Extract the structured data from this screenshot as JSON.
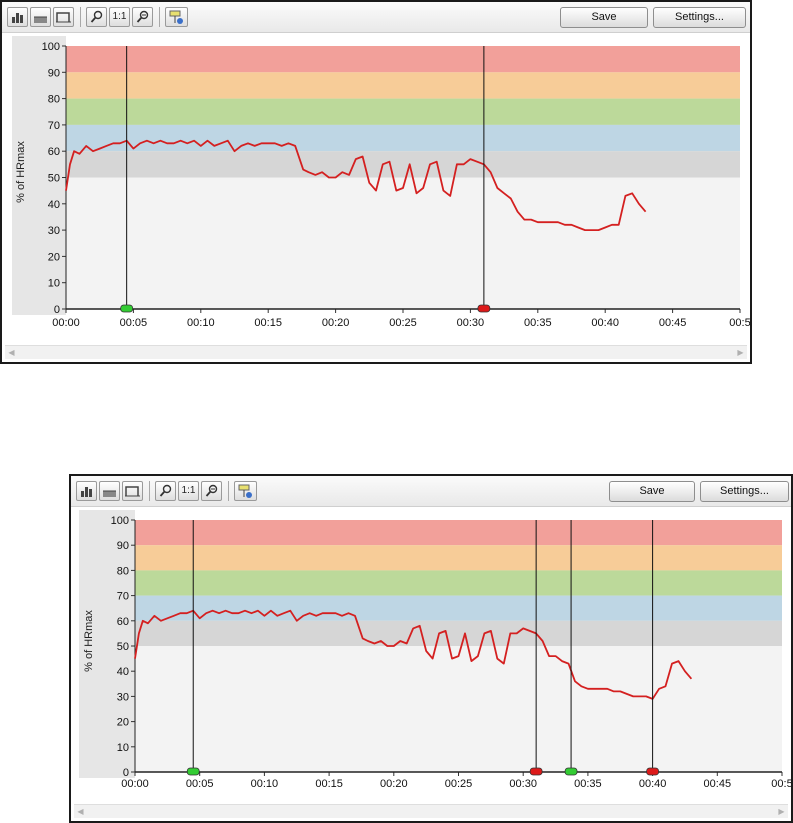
{
  "toolbar": {
    "icons": [
      "bar-chart-icon",
      "area-chart-icon",
      "step-chart-icon",
      "zoom-in-icon",
      "zoom-reset-icon",
      "zoom-out-icon",
      "marker-settings-icon"
    ],
    "zoom_reset_label": "1:1",
    "save_label": "Save",
    "settings_label": "Settings..."
  },
  "colors": {
    "line": "#d42020",
    "zone_90_100": "#f2a09a",
    "zone_80_90": "#f7cc98",
    "zone_70_80": "#bcd99a",
    "zone_60_70": "#bed6e4",
    "zone_50_60": "#d6d6d6",
    "plot_background": "#f3f3f3",
    "start_marker": "#33cc33",
    "stop_marker": "#dd1a1a"
  },
  "chart_data": [
    {
      "type": "line",
      "ylabel": "% of HRmax",
      "xlabel": "",
      "x_unit": "mm:ss",
      "xlim": [
        "00:00",
        "00:50"
      ],
      "ylim": [
        0,
        100
      ],
      "y_ticks": [
        "0",
        "10",
        "20",
        "30",
        "40",
        "50",
        "60",
        "70",
        "80",
        "90",
        "100"
      ],
      "x_ticks": [
        "00:00",
        "00:05",
        "00:10",
        "00:15",
        "00:20",
        "00:25",
        "00:30",
        "00:35",
        "00:40",
        "00:45",
        "00:5"
      ],
      "zones": [
        {
          "from": 90,
          "to": 100,
          "color": "#f2a09a"
        },
        {
          "from": 80,
          "to": 90,
          "color": "#f7cc98"
        },
        {
          "from": 70,
          "to": 80,
          "color": "#bcd99a"
        },
        {
          "from": 60,
          "to": 70,
          "color": "#bed6e4"
        },
        {
          "from": 50,
          "to": 60,
          "color": "#d6d6d6"
        }
      ],
      "markers": [
        {
          "time": "00:04.5",
          "type": "start",
          "color": "green"
        },
        {
          "time": "00:31",
          "type": "stop",
          "color": "red"
        }
      ],
      "series": [
        {
          "x": [
            "00:00.0",
            "00:00.3",
            "00:00.6",
            "00:01.0",
            "00:01.5",
            "00:02.0",
            "00:02.5",
            "00:03.0",
            "00:03.5",
            "00:04.0",
            "00:04.5",
            "00:05.0",
            "00:05.5",
            "00:06.0",
            "00:06.5",
            "00:07.0",
            "00:07.5",
            "00:08.0",
            "00:08.5",
            "00:09.0",
            "00:09.5",
            "00:10.0",
            "00:10.5",
            "00:11.0",
            "00:11.5",
            "00:12.0",
            "00:12.5",
            "00:13.0",
            "00:13.5",
            "00:14.0",
            "00:14.5",
            "00:15.0",
            "00:15.5",
            "00:16.0",
            "00:16.5",
            "00:17.0",
            "00:17.6",
            "00:18.0",
            "00:18.5",
            "00:19.0",
            "00:19.5",
            "00:20.0",
            "00:20.5",
            "00:21.0",
            "00:21.5",
            "00:22.0",
            "00:22.5",
            "00:23.0",
            "00:23.5",
            "00:24.0",
            "00:24.5",
            "00:25.0",
            "00:25.5",
            "00:26.0",
            "00:26.5",
            "00:27.0",
            "00:27.5",
            "00:28.0",
            "00:28.5",
            "00:29.0",
            "00:29.5",
            "00:30.0",
            "00:30.5",
            "00:31.0",
            "00:31.5",
            "00:32.0",
            "00:32.5",
            "00:33.0",
            "00:33.5",
            "00:34.0",
            "00:34.5",
            "00:35.0",
            "00:35.5",
            "00:36.0",
            "00:36.5",
            "00:37.0",
            "00:37.5",
            "00:38.0",
            "00:38.5",
            "00:39.0",
            "00:39.5",
            "00:40.0",
            "00:40.5",
            "00:41.0",
            "00:41.5",
            "00:42.0",
            "00:42.5",
            "00:43.0"
          ],
          "y": [
            45,
            55,
            60,
            59,
            62,
            60,
            61,
            62,
            63,
            63,
            64,
            61,
            63,
            64,
            63,
            64,
            63,
            63,
            64,
            63,
            64,
            62,
            64,
            62,
            63,
            64,
            60,
            62,
            63,
            62,
            63,
            63,
            63,
            62,
            63,
            62,
            53,
            52,
            51,
            52,
            50,
            50,
            52,
            51,
            57,
            58,
            48,
            45,
            55,
            56,
            45,
            46,
            55,
            44,
            46,
            55,
            56,
            45,
            43,
            55,
            55,
            57,
            56,
            55,
            52,
            46,
            44,
            42,
            37,
            34,
            34,
            33,
            33,
            33,
            33,
            32,
            32,
            31,
            30,
            30,
            30,
            31,
            32,
            32,
            43,
            44,
            40,
            37
          ]
        }
      ]
    },
    {
      "type": "line",
      "ylabel": "% of HRmax",
      "xlabel": "",
      "x_unit": "mm:ss",
      "xlim": [
        "00:00",
        "00:50"
      ],
      "ylim": [
        0,
        100
      ],
      "y_ticks": [
        "0",
        "10",
        "20",
        "30",
        "40",
        "50",
        "60",
        "70",
        "80",
        "90",
        "100"
      ],
      "x_ticks": [
        "00:00",
        "00:05",
        "00:10",
        "00:15",
        "00:20",
        "00:25",
        "00:30",
        "00:35",
        "00:40",
        "00:45",
        "00:5"
      ],
      "zones": [
        {
          "from": 90,
          "to": 100,
          "color": "#f2a09a"
        },
        {
          "from": 80,
          "to": 90,
          "color": "#f7cc98"
        },
        {
          "from": 70,
          "to": 80,
          "color": "#bcd99a"
        },
        {
          "from": 60,
          "to": 70,
          "color": "#bed6e4"
        },
        {
          "from": 50,
          "to": 60,
          "color": "#d6d6d6"
        }
      ],
      "markers": [
        {
          "time": "00:04.5",
          "type": "start",
          "color": "green"
        },
        {
          "time": "00:31",
          "type": "stop",
          "color": "red"
        },
        {
          "time": "00:33.7",
          "type": "start",
          "color": "green"
        },
        {
          "time": "00:40",
          "type": "stop",
          "color": "red"
        }
      ],
      "series": [
        {
          "x": [
            "00:00.0",
            "00:00.3",
            "00:00.6",
            "00:01.0",
            "00:01.5",
            "00:02.0",
            "00:02.5",
            "00:03.0",
            "00:03.5",
            "00:04.0",
            "00:04.5",
            "00:05.0",
            "00:05.5",
            "00:06.0",
            "00:06.5",
            "00:07.0",
            "00:07.5",
            "00:08.0",
            "00:08.5",
            "00:09.0",
            "00:09.5",
            "00:10.0",
            "00:10.5",
            "00:11.0",
            "00:11.5",
            "00:12.0",
            "00:12.5",
            "00:13.0",
            "00:13.5",
            "00:14.0",
            "00:14.5",
            "00:15.0",
            "00:15.5",
            "00:16.0",
            "00:16.5",
            "00:17.0",
            "00:17.6",
            "00:18.0",
            "00:18.5",
            "00:19.0",
            "00:19.5",
            "00:20.0",
            "00:20.5",
            "00:21.0",
            "00:21.5",
            "00:22.0",
            "00:22.5",
            "00:23.0",
            "00:23.5",
            "00:24.0",
            "00:24.5",
            "00:25.0",
            "00:25.5",
            "00:26.0",
            "00:26.5",
            "00:27.0",
            "00:27.5",
            "00:28.0",
            "00:28.5",
            "00:29.0",
            "00:29.5",
            "00:30.0",
            "00:30.5",
            "00:31.0",
            "00:31.5",
            "00:32.0",
            "00:32.5",
            "00:33.0",
            "00:33.5",
            "00:34.0",
            "00:34.5",
            "00:35.0",
            "00:35.5",
            "00:36.0",
            "00:36.5",
            "00:37.0",
            "00:37.5",
            "00:38.0",
            "00:38.5",
            "00:39.0",
            "00:39.5",
            "00:40.0",
            "00:40.5",
            "00:41.0",
            "00:41.5",
            "00:42.0",
            "00:42.5",
            "00:43.0"
          ],
          "y": [
            45,
            55,
            60,
            59,
            62,
            60,
            61,
            62,
            63,
            63,
            64,
            61,
            63,
            64,
            63,
            64,
            63,
            63,
            64,
            63,
            64,
            62,
            64,
            62,
            63,
            64,
            60,
            62,
            63,
            62,
            63,
            63,
            63,
            62,
            63,
            62,
            53,
            52,
            51,
            52,
            50,
            50,
            52,
            51,
            57,
            58,
            48,
            45,
            55,
            56,
            45,
            46,
            55,
            44,
            46,
            55,
            56,
            45,
            43,
            55,
            55,
            57,
            56,
            55,
            52,
            46,
            46,
            44,
            43,
            36,
            34,
            33,
            33,
            33,
            33,
            32,
            32,
            31,
            30,
            30,
            30,
            29,
            33,
            34,
            43,
            44,
            40,
            37
          ]
        }
      ]
    }
  ]
}
